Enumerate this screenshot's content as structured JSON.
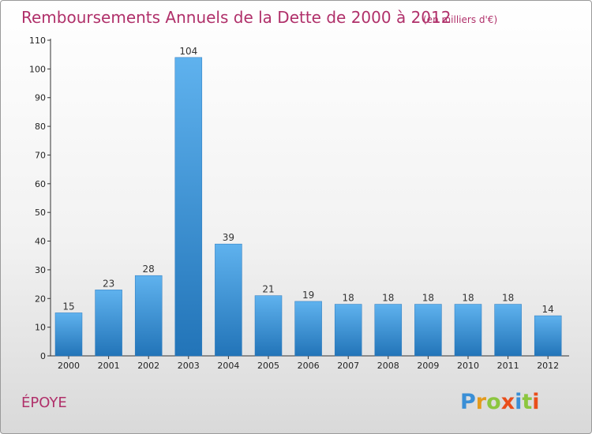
{
  "chart_data": {
    "type": "bar",
    "title": "Remboursements Annuels de la Dette de 2000 à 2012",
    "subtitle": "(en milliers d'€)",
    "categories": [
      "2000",
      "2001",
      "2002",
      "2003",
      "2004",
      "2005",
      "2006",
      "2007",
      "2008",
      "2009",
      "2010",
      "2011",
      "2012"
    ],
    "values": [
      15,
      23,
      28,
      104,
      39,
      21,
      19,
      18,
      18,
      18,
      18,
      18,
      14
    ],
    "ylim": [
      0,
      110
    ],
    "yticks": [
      0,
      10,
      20,
      30,
      40,
      50,
      60,
      70,
      80,
      90,
      100,
      110
    ],
    "grid": false,
    "bar_color": "#3a8fd6"
  },
  "commune": "ÉPOYE",
  "brand": {
    "letters": [
      "P",
      "r",
      "o",
      "x",
      "i",
      "t",
      "i"
    ],
    "colors": [
      "#3a8fd6",
      "#e39a1c",
      "#8cc63f",
      "#e94e1b",
      "#3a8fd6",
      "#8cc63f",
      "#e94e1b"
    ]
  }
}
